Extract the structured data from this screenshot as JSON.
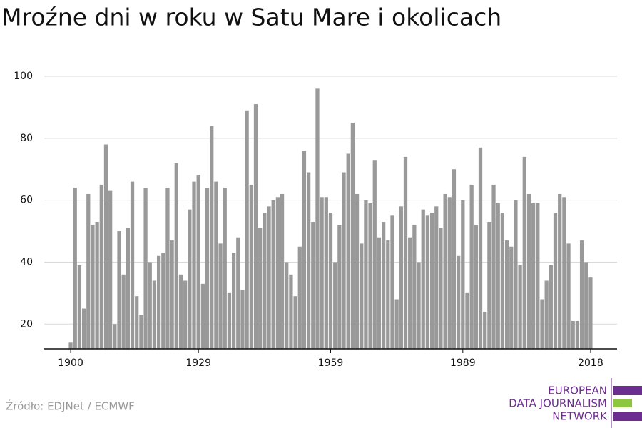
{
  "chart_data": {
    "type": "bar",
    "title": "Mroźne dni w roku w Satu Mare i okolicach",
    "x": [
      1900,
      1901,
      1902,
      1903,
      1904,
      1905,
      1906,
      1907,
      1908,
      1909,
      1910,
      1911,
      1912,
      1913,
      1914,
      1915,
      1916,
      1917,
      1918,
      1919,
      1920,
      1921,
      1922,
      1923,
      1924,
      1925,
      1926,
      1927,
      1928,
      1929,
      1930,
      1931,
      1932,
      1933,
      1934,
      1935,
      1936,
      1937,
      1938,
      1939,
      1940,
      1941,
      1942,
      1943,
      1944,
      1945,
      1946,
      1947,
      1948,
      1949,
      1950,
      1951,
      1952,
      1953,
      1954,
      1955,
      1956,
      1957,
      1958,
      1959,
      1960,
      1961,
      1962,
      1963,
      1964,
      1965,
      1966,
      1967,
      1968,
      1969,
      1970,
      1971,
      1972,
      1973,
      1974,
      1975,
      1976,
      1977,
      1978,
      1979,
      1980,
      1981,
      1982,
      1983,
      1984,
      1985,
      1986,
      1987,
      1988,
      1989,
      1990,
      1991,
      1992,
      1993,
      1994,
      1995,
      1996,
      1997,
      1998,
      1999,
      2000,
      2001,
      2002,
      2003,
      2004,
      2005,
      2006,
      2007,
      2008,
      2009,
      2010,
      2011,
      2012,
      2013,
      2014,
      2015,
      2016,
      2017,
      2018
    ],
    "values": [
      14,
      64,
      39,
      25,
      62,
      52,
      53,
      65,
      78,
      63,
      20,
      50,
      36,
      51,
      66,
      29,
      23,
      64,
      40,
      34,
      42,
      43,
      64,
      47,
      72,
      36,
      34,
      57,
      66,
      68,
      33,
      64,
      84,
      66,
      46,
      64,
      30,
      43,
      48,
      31,
      89,
      65,
      91,
      51,
      56,
      58,
      60,
      61,
      62,
      40,
      36,
      29,
      45,
      76,
      69,
      53,
      96,
      61,
      61,
      56,
      40,
      52,
      69,
      75,
      85,
      62,
      46,
      60,
      59,
      73,
      48,
      53,
      47,
      55,
      28,
      58,
      74,
      48,
      52,
      40,
      57,
      55,
      56,
      58,
      51,
      62,
      61,
      70,
      42,
      60,
      30,
      65,
      52,
      77,
      24,
      53,
      65,
      59,
      56,
      47,
      45,
      60,
      39,
      74,
      62,
      59,
      59,
      28,
      34,
      39,
      56,
      62,
      61,
      46,
      21,
      21,
      47,
      40,
      35
    ],
    "color": "#999999",
    "xlim": [
      1894,
      2024
    ],
    "xticks": [
      1900,
      1929,
      1959,
      1989,
      2018
    ],
    "ylim": [
      12,
      100
    ],
    "yticks": [
      20,
      40,
      60,
      80,
      100
    ],
    "grid": true,
    "source": "Źródło: EDJNet / ECMWF",
    "logo": [
      "EUROPEAN",
      "DATA JOURNALISM",
      "NETWORK"
    ]
  }
}
